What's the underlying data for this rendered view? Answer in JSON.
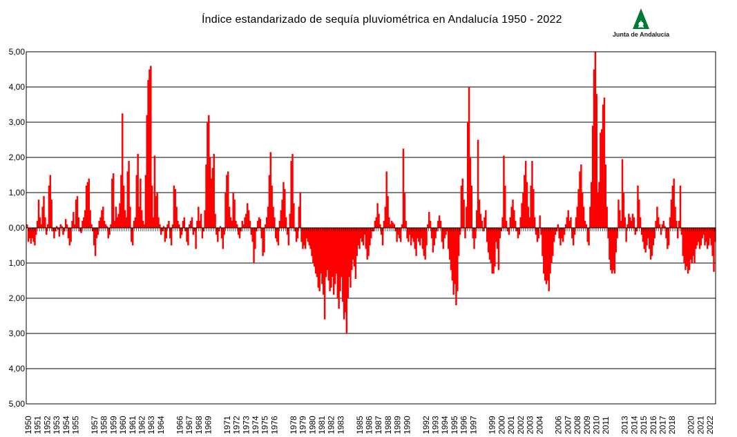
{
  "title": "Índice estandarizado de sequía pluviométrica en Andalucía 1950 - 2022",
  "logo": {
    "text": "Junta de Andalucía",
    "color": "#007a33"
  },
  "chart_data": {
    "type": "bar",
    "title": "Índice estandarizado de sequía pluviométrica en Andalucía 1950 - 2022",
    "xlabel": "",
    "ylabel": "",
    "ylim": [
      -5,
      5
    ],
    "grid": true,
    "bar_color": "#ff0000",
    "y_tick_labels": [
      "5,00",
      "4,00",
      "3,00",
      "2,00",
      "1,00",
      "0,00",
      "1,00",
      "2,00",
      "3,00",
      "4,00",
      "5,00"
    ],
    "x_tick_labels": [
      "1950",
      "1951",
      "1952",
      "1953",
      "1954",
      "1955",
      "1957",
      "1958",
      "1959",
      "1960",
      "1961",
      "1962",
      "1963",
      "1964",
      "1966",
      "1967",
      "1968",
      "1969",
      "1971",
      "1972",
      "1973",
      "1974",
      "1975",
      "1976",
      "1978",
      "1979",
      "1980",
      "1981",
      "1982",
      "1983",
      "1985",
      "1986",
      "1987",
      "1988",
      "1989",
      "1990",
      "1992",
      "1993",
      "1994",
      "1995",
      "1996",
      "1997",
      "1999",
      "2000",
      "2001",
      "2002",
      "2003",
      "2004",
      "2006",
      "2007",
      "2008",
      "2009",
      "2010",
      "2011",
      "2013",
      "2014",
      "2015",
      "2016",
      "2017",
      "2018",
      "2020",
      "2021",
      "2022"
    ],
    "series": [
      {
        "frequency": "monthly, values read approximately",
        "x_start": 1950.0,
        "x_end": 2022.8,
        "values": [
          0.1,
          -0.4,
          -0.3,
          -0.45,
          -0.3,
          -0.4,
          -0.5,
          -0.2,
          0.2,
          0.8,
          0.3,
          0.1,
          0.6,
          0.9,
          0.3,
          -0.2,
          0.1,
          1.2,
          1.5,
          0.8,
          -0.1,
          -0.3,
          -0.1,
          0.05,
          -0.05,
          -0.25,
          0.1,
          0.05,
          -0.2,
          -0.1,
          0.25,
          0.1,
          -0.3,
          -0.5,
          -0.4,
          0.2,
          0.45,
          0.1,
          0.8,
          0.9,
          0.3,
          -0.1,
          -0.15,
          0.2,
          0.3,
          0.5,
          1.2,
          1.3,
          1.4,
          0.5,
          0.1,
          -0.1,
          -0.5,
          -0.8,
          -0.3,
          -0.2,
          0.2,
          0.3,
          0.5,
          0.6,
          0.2,
          0.1,
          0.05,
          -0.3,
          -0.2,
          0.1,
          1.4,
          1.55,
          0.2,
          0.6,
          0.3,
          0.4,
          0.7,
          1.5,
          3.25,
          1.2,
          0.5,
          0.3,
          1.6,
          1.9,
          0.6,
          -0.4,
          -0.5,
          0.2,
          0.3,
          1.5,
          2.1,
          0.6,
          1.4,
          0.5,
          0.2,
          0.1,
          1.5,
          3.2,
          4.2,
          4.5,
          4.6,
          1.2,
          0.3,
          2.05,
          0.9,
          1.0,
          0.3,
          0.1,
          -0.2,
          -0.1,
          0.05,
          -0.4,
          -0.3,
          0.1,
          0.2,
          -0.3,
          -0.5,
          0.1,
          1.2,
          1.1,
          0.6,
          0.2,
          0.1,
          -0.3,
          -0.2,
          0.2,
          0.3,
          -0.1,
          -0.4,
          -0.5,
          0.1,
          0.2,
          0.3,
          -0.2,
          -0.1,
          -0.6,
          0.2,
          0.6,
          0.2,
          0.4,
          -0.3,
          -0.1,
          0.5,
          1.8,
          3.0,
          3.2,
          2.0,
          1.4,
          1.7,
          2.1,
          0.4,
          -0.2,
          -0.4,
          -0.1,
          0.05,
          -0.3,
          -0.6,
          -0.2,
          1.0,
          1.5,
          1.6,
          0.6,
          0.3,
          0.2,
          1.0,
          0.8,
          0.2,
          0.1,
          -0.2,
          -0.3,
          -0.1,
          0.2,
          0.1,
          0.3,
          0.4,
          0.7,
          0.5,
          0.2,
          -0.2,
          -0.4,
          -1.0,
          -0.6,
          -0.1,
          0.2,
          0.3,
          0.25,
          -0.3,
          -0.8,
          -0.7,
          0.1,
          0.3,
          0.6,
          1.5,
          2.15,
          1.2,
          0.6,
          0.3,
          -0.3,
          -0.4,
          -0.5,
          0.2,
          0.5,
          0.8,
          1.3,
          1.1,
          0.3,
          -0.2,
          -0.5,
          0.4,
          1.9,
          2.1,
          0.7,
          -0.1,
          -0.4,
          -0.3,
          0.6,
          1.0,
          -0.4,
          -0.6,
          -0.5,
          -0.6,
          -0.3,
          -0.4,
          -0.5,
          -0.6,
          -0.8,
          -1.0,
          -1.1,
          -1.3,
          -1.4,
          -1.7,
          -1.8,
          -1.3,
          -1.6,
          -1.9,
          -2.6,
          -1.4,
          -1.2,
          -1.5,
          -1.8,
          -1.7,
          -1.4,
          -1.9,
          -1.6,
          -1.3,
          -2.0,
          -2.3,
          -1.8,
          -1.4,
          -2.1,
          -2.6,
          -2.4,
          -3.0,
          -2.0,
          -1.4,
          -1.7,
          -1.2,
          -0.9,
          -1.1,
          -1.45,
          -0.8,
          -0.5,
          -0.6,
          -0.3,
          -0.4,
          -0.5,
          -0.2,
          -0.6,
          -0.9,
          -0.8,
          -0.5,
          -0.3,
          -0.1,
          -0.1,
          0.2,
          0.3,
          0.7,
          0.4,
          0.1,
          -0.2,
          -0.5,
          0.2,
          0.6,
          1.6,
          0.9,
          0.3,
          0.1,
          0.2,
          0.15,
          0.1,
          -0.1,
          -0.4,
          -0.2,
          -0.3,
          -0.4,
          0.1,
          2.25,
          1.0,
          0.2,
          -0.3,
          -0.4,
          -0.2,
          -0.5,
          -0.3,
          -0.4,
          -0.6,
          -0.8,
          -0.3,
          -0.4,
          -0.5,
          -0.3,
          -0.6,
          -0.8,
          -0.9,
          -0.5,
          0.1,
          0.45,
          0.2,
          -0.3,
          -0.7,
          -0.5,
          -0.3,
          -0.1,
          0.2,
          0.35,
          0.2,
          -0.4,
          -0.6,
          -0.3,
          -0.2,
          -0.1,
          -0.6,
          -0.9,
          -1.2,
          -1.5,
          -1.9,
          -1.6,
          -2.2,
          -1.8,
          -0.8,
          -0.2,
          1.2,
          1.4,
          0.8,
          -0.3,
          0.6,
          3.0,
          4.0,
          2.0,
          1.2,
          -0.3,
          -0.6,
          -0.3,
          0.5,
          2.5,
          0.8,
          0.4,
          0.2,
          -0.1,
          0.3,
          0.5,
          -0.4,
          -0.7,
          -0.9,
          -1.0,
          -1.3,
          -1.3,
          -1.1,
          -0.4,
          -0.6,
          -1.2,
          -0.3,
          -0.1,
          0.3,
          2.05,
          1.2,
          0.2,
          -0.1,
          -0.2,
          0.3,
          0.6,
          0.8,
          0.5,
          0.2,
          -0.1,
          -0.3,
          -0.2,
          0.3,
          0.7,
          1.0,
          1.5,
          1.9,
          1.3,
          0.6,
          0.3,
          1.2,
          1.9,
          1.1,
          0.3,
          -0.2,
          -0.4,
          -0.3,
          0.35,
          -0.2,
          -0.8,
          -1.3,
          -1.5,
          -1.6,
          -1.5,
          -1.8,
          -1.3,
          -1.0,
          -0.8,
          -0.4,
          -0.2,
          -0.1,
          0.1,
          -0.3,
          -0.5,
          -0.3,
          -0.4,
          -0.2,
          0.1,
          0.3,
          0.5,
          0.2,
          0.3,
          -0.3,
          -0.5,
          -0.2,
          0.3,
          0.6,
          1.1,
          1.6,
          1.8,
          1.0,
          0.6,
          0.2,
          0.1,
          -0.4,
          -0.5,
          0.6,
          1.3,
          2.9,
          4.5,
          5.0,
          3.8,
          1.0,
          1.3,
          2.7,
          2.8,
          3.5,
          3.7,
          1.8,
          0.6,
          -0.3,
          -0.9,
          -1.2,
          -1.3,
          -1.2,
          -1.3,
          -0.7,
          -0.3,
          0.8,
          0.5,
          0.2,
          1.95,
          1.0,
          0.3,
          -0.4,
          0.1,
          0.4,
          0.3,
          0.2,
          0.4,
          0.3,
          -0.2,
          -0.1,
          1.2,
          0.8,
          0.3,
          -0.2,
          -0.4,
          -0.6,
          -0.7,
          -0.5,
          -0.3,
          -0.6,
          -0.9,
          -0.8,
          -0.5,
          -0.3,
          0.2,
          0.6,
          0.3,
          0.1,
          -0.2,
          0.1,
          0.2,
          0.05,
          -0.3,
          -0.6,
          -0.5,
          0.3,
          0.8,
          1.2,
          1.4,
          0.6,
          0.2,
          -0.3,
          0.2,
          1.2,
          -0.2,
          -0.8,
          -1.0,
          -1.2,
          -1.1,
          -1.3,
          -1.2,
          -0.9,
          -1.0,
          -0.8,
          -1.0,
          -0.6,
          -0.5,
          -0.4,
          -0.6,
          -0.5,
          -0.3,
          -0.2,
          -0.5,
          -0.4,
          -0.6,
          -0.5,
          -0.3,
          -0.5,
          -0.8,
          -1.25,
          -0.4
        ]
      }
    ]
  }
}
